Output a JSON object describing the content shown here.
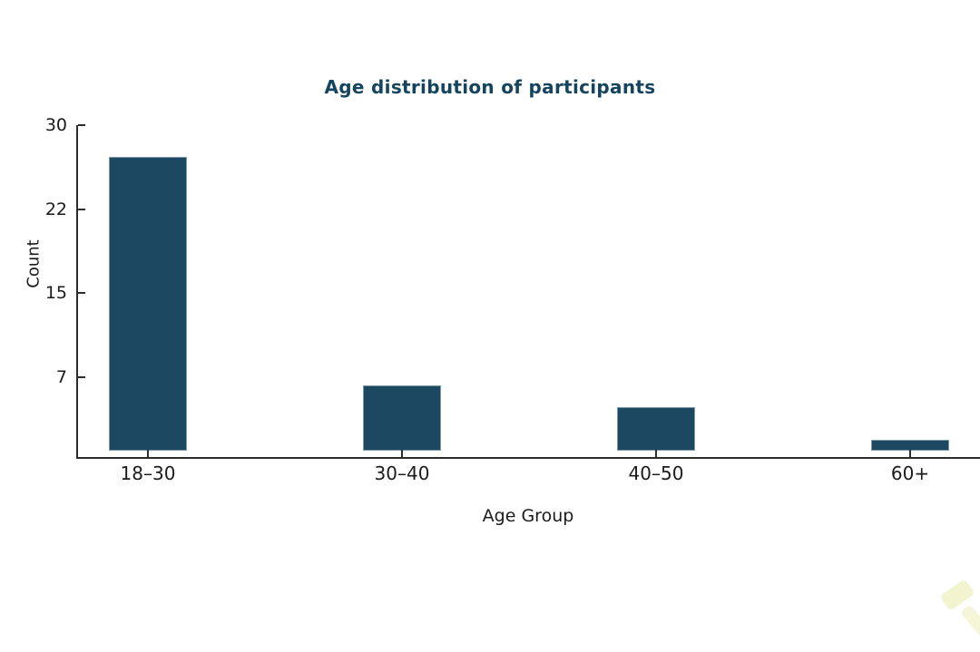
{
  "page": {
    "background": "#ffffff"
  },
  "chart_data": {
    "type": "bar",
    "title": "Age distribution of participants",
    "xlabel": "Age Group",
    "ylabel": "Count",
    "categories": [
      "18–30",
      "30–40",
      "40–50",
      "60+"
    ],
    "values": [
      27,
      6,
      4,
      1
    ],
    "ylim": [
      0,
      30
    ],
    "ytick_labels": [
      "30",
      "22",
      "15",
      "7"
    ],
    "ytick_values": [
      30,
      22,
      15,
      7
    ],
    "grid": false,
    "legend": false,
    "style": "hand-drawn",
    "bar_color": "#1d4861"
  },
  "colors": {
    "title": "#15455e",
    "bar": "#1d4861",
    "axis": "#2d2d2d",
    "text": "#1b1b1b",
    "watermark": "#e4e9a0"
  }
}
